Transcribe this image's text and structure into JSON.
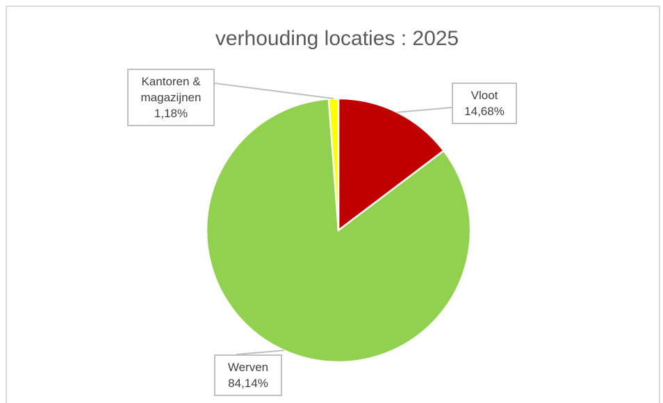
{
  "chart_data": {
    "type": "pie",
    "title": "verhouding locaties : 2025",
    "categories": [
      "Vloot",
      "Werven",
      "Kantoren & magazijnen"
    ],
    "values": [
      14.68,
      84.14,
      1.18
    ],
    "value_labels": [
      "14,68%",
      "84,14%",
      "1,18%"
    ],
    "colors": [
      "#c00000",
      "#92d050",
      "#ffff00"
    ]
  }
}
